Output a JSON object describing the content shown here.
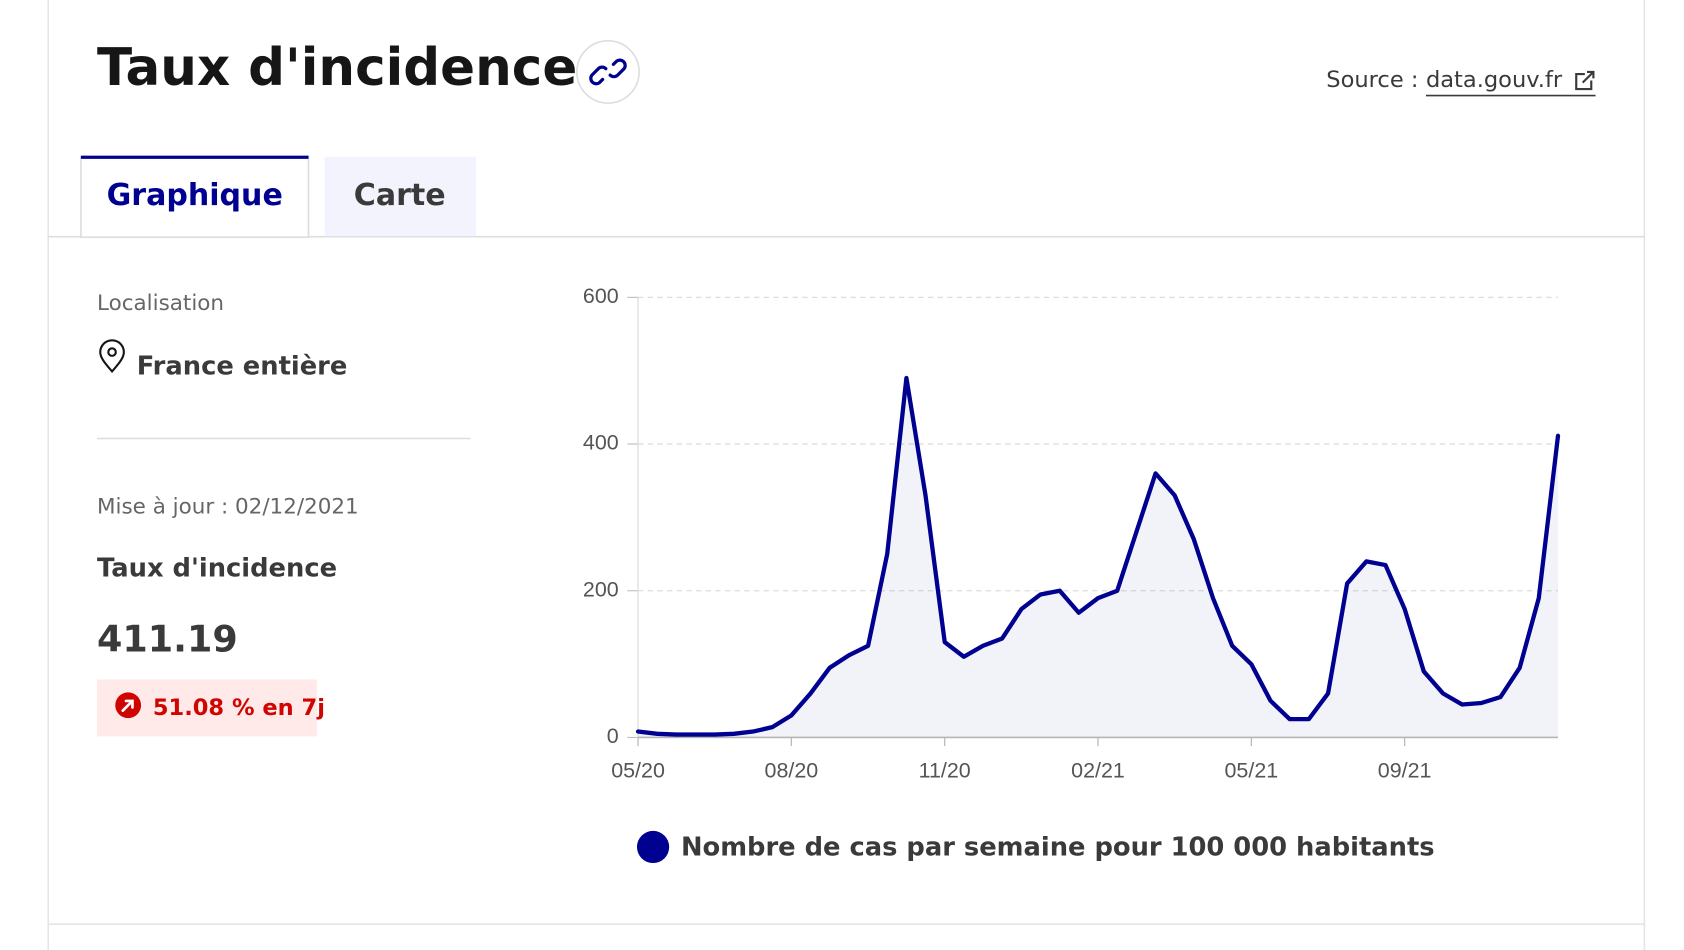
{
  "header": {
    "title": "Taux d'incidence",
    "source_label": "Source :",
    "source_link": "data.gouv.fr"
  },
  "tabs": [
    "Graphique",
    "Carte"
  ],
  "sidebar": {
    "location_label": "Localisation",
    "location": "France entière",
    "update": "Mise à jour : 02/12/2021",
    "indicator": "Taux d'incidence",
    "value": "411.19",
    "change": "51.08 % en 7j"
  },
  "chart_data": {
    "type": "line",
    "categories": [
      "05/20",
      null,
      null,
      null,
      null,
      null,
      null,
      null,
      "08/20",
      null,
      null,
      null,
      null,
      null,
      null,
      null,
      "11/20",
      null,
      null,
      null,
      null,
      null,
      null,
      null,
      "02/21",
      null,
      null,
      null,
      null,
      null,
      null,
      null,
      "05/21",
      null,
      null,
      null,
      null,
      null,
      null,
      null,
      "09/21",
      null,
      null,
      null,
      null,
      null,
      null,
      null,
      null
    ],
    "series": [
      {
        "name": "Nombre de cas par semaine pour 100 000 habitants",
        "color": "#000091",
        "values": [
          8,
          5,
          4,
          4,
          4,
          5,
          8,
          14,
          30,
          60,
          95,
          112,
          125,
          250,
          490,
          330,
          130,
          110,
          125,
          135,
          175,
          195,
          200,
          170,
          190,
          200,
          280,
          360,
          330,
          270,
          190,
          125,
          100,
          50,
          25,
          25,
          60,
          210,
          240,
          235,
          175,
          90,
          60,
          45,
          47,
          55,
          95,
          190,
          411.19
        ]
      }
    ],
    "ylim": [
      0,
      600
    ],
    "yticks": [
      0,
      200,
      400,
      600
    ],
    "grid": true
  }
}
